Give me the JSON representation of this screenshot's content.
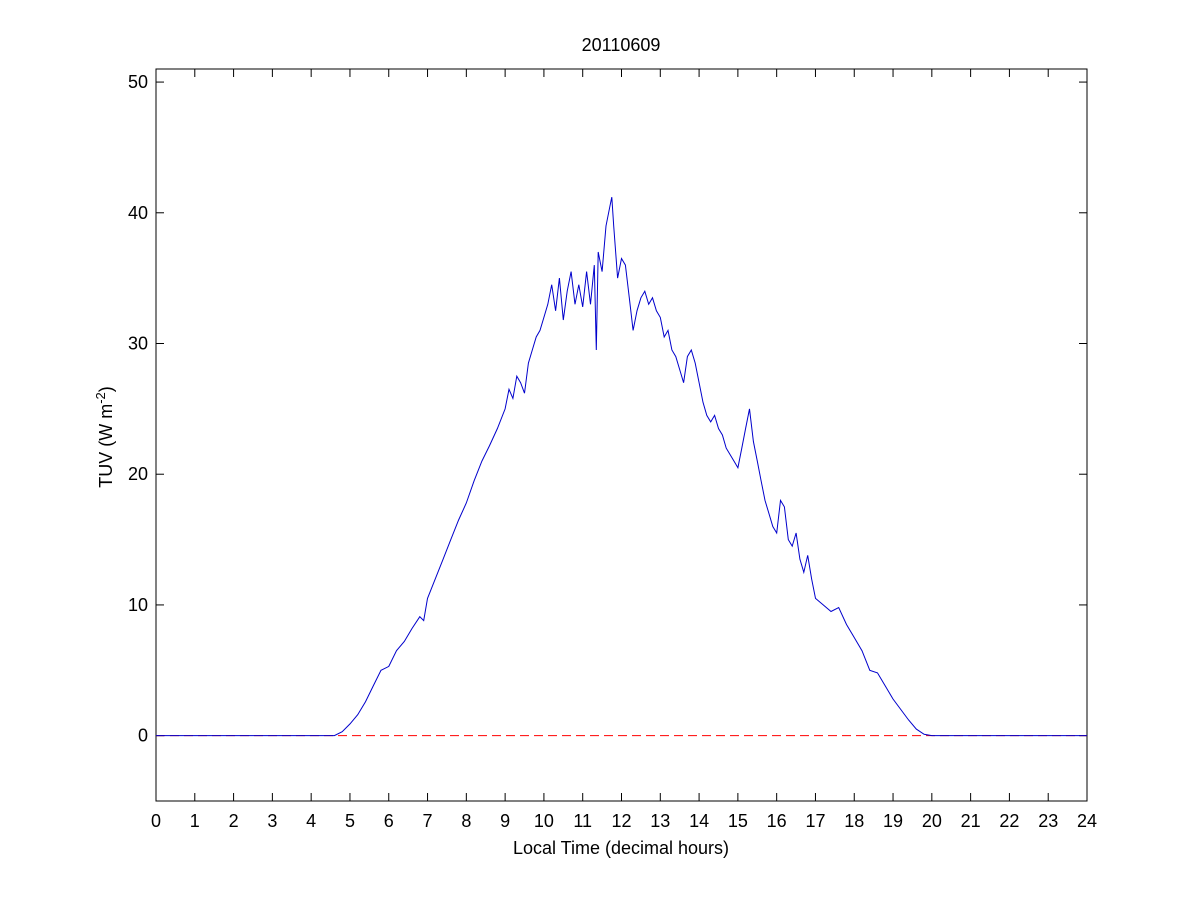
{
  "chart_data": {
    "type": "line",
    "title": "20110609",
    "xlabel": "Local Time (decimal hours)",
    "ylabel": {
      "base": "TUV (W m",
      "superscript": "-2",
      "close": ")"
    },
    "xlim": [
      0,
      24
    ],
    "ylim": [
      -5,
      51
    ],
    "xticks": [
      0,
      1,
      2,
      3,
      4,
      5,
      6,
      7,
      8,
      9,
      10,
      11,
      12,
      13,
      14,
      15,
      16,
      17,
      18,
      19,
      20,
      21,
      22,
      23,
      24
    ],
    "yticks": [
      0,
      10,
      20,
      30,
      40,
      50
    ],
    "grid": false,
    "legend": "none",
    "series": [
      {
        "color": "#0000cc",
        "style": "solid",
        "x": [
          0,
          4.6,
          4.8,
          5.0,
          5.2,
          5.4,
          5.6,
          5.8,
          6.0,
          6.2,
          6.4,
          6.6,
          6.8,
          6.9,
          7.0,
          7.2,
          7.4,
          7.6,
          7.8,
          8.0,
          8.2,
          8.4,
          8.6,
          8.8,
          9.0,
          9.1,
          9.2,
          9.3,
          9.4,
          9.5,
          9.6,
          9.7,
          9.8,
          9.9,
          10.0,
          10.1,
          10.2,
          10.3,
          10.4,
          10.5,
          10.6,
          10.7,
          10.8,
          10.9,
          11.0,
          11.1,
          11.2,
          11.3,
          11.35,
          11.4,
          11.5,
          11.6,
          11.7,
          11.75,
          11.8,
          11.9,
          12.0,
          12.1,
          12.2,
          12.3,
          12.4,
          12.5,
          12.6,
          12.7,
          12.8,
          12.9,
          13.0,
          13.1,
          13.2,
          13.3,
          13.4,
          13.5,
          13.6,
          13.7,
          13.8,
          13.9,
          14.0,
          14.1,
          14.2,
          14.3,
          14.4,
          14.5,
          14.6,
          14.7,
          14.8,
          14.9,
          15.0,
          15.1,
          15.2,
          15.3,
          15.4,
          15.5,
          15.6,
          15.7,
          15.8,
          15.9,
          16.0,
          16.1,
          16.2,
          16.3,
          16.4,
          16.5,
          16.6,
          16.7,
          16.8,
          16.9,
          17.0,
          17.2,
          17.4,
          17.6,
          17.8,
          18.0,
          18.2,
          18.4,
          18.6,
          18.8,
          19.0,
          19.2,
          19.4,
          19.6,
          19.8,
          20.0,
          24
        ],
        "y": [
          0,
          0,
          0.3,
          0.9,
          1.6,
          2.6,
          3.8,
          5.0,
          5.3,
          6.5,
          7.2,
          8.2,
          9.1,
          8.8,
          10.5,
          12.0,
          13.5,
          15.0,
          16.5,
          17.8,
          19.5,
          21.0,
          22.2,
          23.5,
          25.0,
          26.5,
          25.8,
          27.5,
          27.0,
          26.2,
          28.5,
          29.5,
          30.5,
          31.0,
          32.0,
          33.0,
          34.5,
          32.5,
          35.0,
          31.8,
          34.0,
          35.5,
          33.0,
          34.5,
          32.8,
          35.5,
          33.0,
          36.0,
          29.5,
          37.0,
          35.5,
          39.0,
          40.5,
          41.2,
          39.0,
          35.0,
          36.5,
          36.0,
          33.5,
          31.0,
          32.5,
          33.5,
          34.0,
          33.0,
          33.5,
          32.5,
          32.0,
          30.5,
          31.0,
          29.5,
          29.0,
          28.0,
          27.0,
          29.0,
          29.5,
          28.5,
          27.0,
          25.5,
          24.5,
          24.0,
          24.5,
          23.5,
          23.0,
          22.0,
          21.5,
          21.0,
          20.5,
          22.0,
          23.5,
          25.0,
          22.5,
          21.0,
          19.5,
          18.0,
          17.0,
          16.0,
          15.5,
          18.0,
          17.5,
          15.0,
          14.5,
          15.5,
          13.5,
          12.5,
          13.8,
          12.0,
          10.5,
          10.0,
          9.5,
          9.8,
          8.5,
          7.5,
          6.5,
          5.0,
          4.8,
          3.8,
          2.8,
          2.0,
          1.2,
          0.5,
          0.1,
          0,
          0
        ]
      },
      {
        "color": "#ff0000",
        "style": "dashed",
        "x": [
          0,
          24
        ],
        "y": [
          0,
          0
        ]
      }
    ]
  }
}
